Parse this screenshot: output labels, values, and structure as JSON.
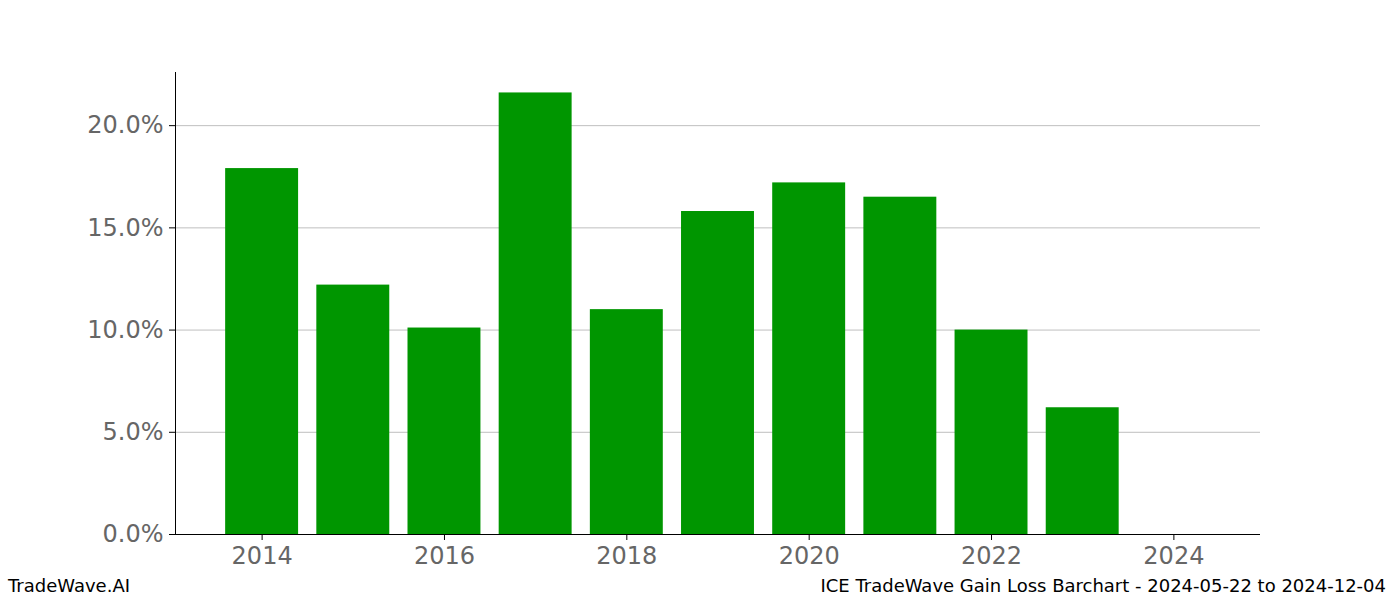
{
  "chart_data": {
    "type": "bar",
    "categories": [
      2014,
      2015,
      2016,
      2017,
      2018,
      2019,
      2020,
      2021,
      2022,
      2023
    ],
    "values": [
      17.9,
      12.2,
      10.1,
      21.6,
      11.0,
      15.8,
      17.2,
      16.5,
      10.0,
      6.2
    ],
    "color": "#009600",
    "xlim": [
      2013.05,
      2024.95
    ],
    "xticks": [
      2014,
      2016,
      2018,
      2020,
      2022,
      2024
    ],
    "ylim": [
      0,
      22.6
    ],
    "yticks": [
      {
        "value": 0,
        "label": "0.0%"
      },
      {
        "value": 5,
        "label": "5.0%"
      },
      {
        "value": 10,
        "label": "10.0%"
      },
      {
        "value": 15,
        "label": "15.0%"
      },
      {
        "value": 20,
        "label": "20.0%"
      }
    ],
    "grid": true,
    "footer": [
      "TradeWave.AI",
      "ICE TradeWave Gain Loss Barchart - 2024-05-22 to 2024-12-04"
    ]
  }
}
